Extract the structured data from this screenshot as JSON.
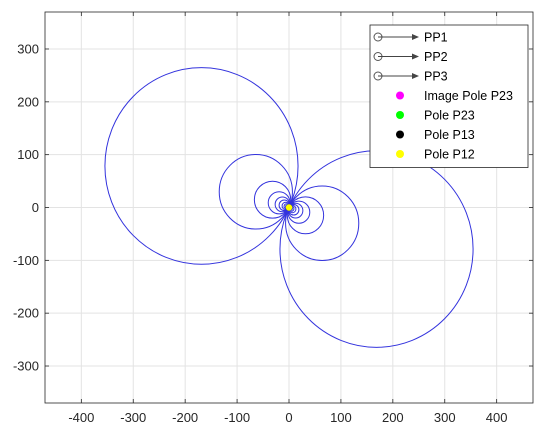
{
  "chart_data": {
    "type": "line",
    "title": "",
    "xlabel": "",
    "ylabel": "",
    "xlim": [
      -470,
      470
    ],
    "ylim": [
      -370,
      370
    ],
    "xticks": [
      -400,
      -300,
      -200,
      -100,
      0,
      100,
      200,
      300,
      400
    ],
    "yticks": [
      -300,
      -200,
      -100,
      0,
      100,
      200,
      300
    ],
    "xtick_labels": [
      "-400",
      "-300",
      "-200",
      "-100",
      "0",
      "100",
      "200",
      "300",
      "400"
    ],
    "ytick_labels": [
      "-300",
      "-200",
      "-100",
      "0",
      "100",
      "200",
      "300"
    ],
    "grid": true,
    "line_color": "#3333dd",
    "circle_family": {
      "description_of_geometry": "circles through the pole at the origin",
      "upper_left_diameters": [
        372,
        141,
        70,
        42,
        28,
        20,
        14,
        10,
        7
      ],
      "lower_right_diameters": [
        372,
        141,
        70,
        42,
        28,
        20,
        14,
        10,
        7
      ],
      "upper_left_angle_deg": 155,
      "lower_right_angle_deg": -25
    },
    "markers": [
      {
        "name": "Image Pole P23",
        "x": 0,
        "y": 0,
        "color": "#ff00ff"
      },
      {
        "name": "Pole P23",
        "x": 0,
        "y": 0,
        "color": "#00ff00"
      },
      {
        "name": "Pole P13",
        "x": 0,
        "y": 0,
        "color": "#000000"
      },
      {
        "name": "Pole P12",
        "x": 0,
        "y": 0,
        "color": "#ffff00"
      }
    ],
    "legend": {
      "location": "top-right",
      "entries": [
        {
          "label": "PP1",
          "symbol": "arrow"
        },
        {
          "label": "PP2",
          "symbol": "arrow"
        },
        {
          "label": "PP3",
          "symbol": "arrow"
        },
        {
          "label": "Image Pole P23",
          "symbol": "dot",
          "color": "#ff00ff"
        },
        {
          "label": "Pole P23",
          "symbol": "dot",
          "color": "#00ff00"
        },
        {
          "label": "Pole P13",
          "symbol": "dot",
          "color": "#000000"
        },
        {
          "label": "Pole P12",
          "symbol": "dot",
          "color": "#ffff00"
        }
      ]
    }
  }
}
